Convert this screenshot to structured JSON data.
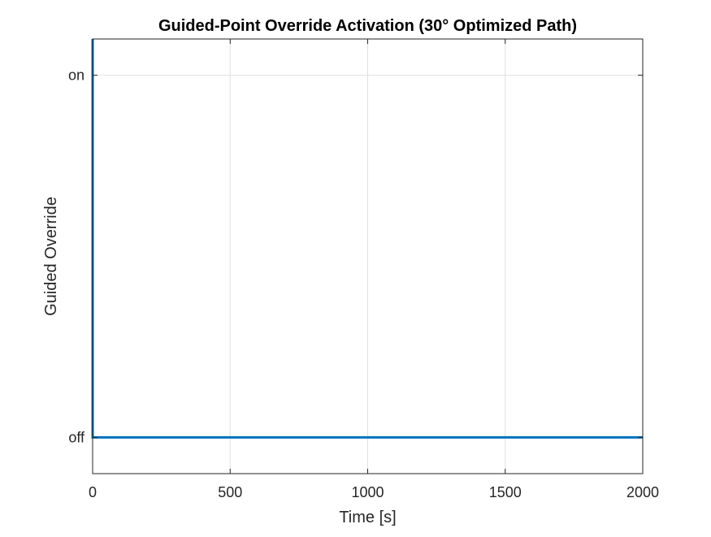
{
  "chart_data": {
    "type": "line",
    "title": "Guided-Point Override Activation (30° Optimized Path)",
    "xlabel": "Time [s]",
    "ylabel": "Guided Override",
    "xlim": [
      0,
      2000
    ],
    "ylim": [
      -0.1,
      1.1
    ],
    "xticks": [
      0,
      500,
      1000,
      1500,
      2000
    ],
    "xtick_labels": [
      "0",
      "500",
      "1000",
      "1500",
      "2000"
    ],
    "yticks": [
      0,
      1
    ],
    "ytick_labels": [
      "off",
      "on"
    ],
    "grid": true,
    "series": [
      {
        "color": "#0072BD",
        "x": [
          0,
          0,
          2000
        ],
        "y": [
          1.1,
          0,
          0
        ]
      }
    ]
  }
}
